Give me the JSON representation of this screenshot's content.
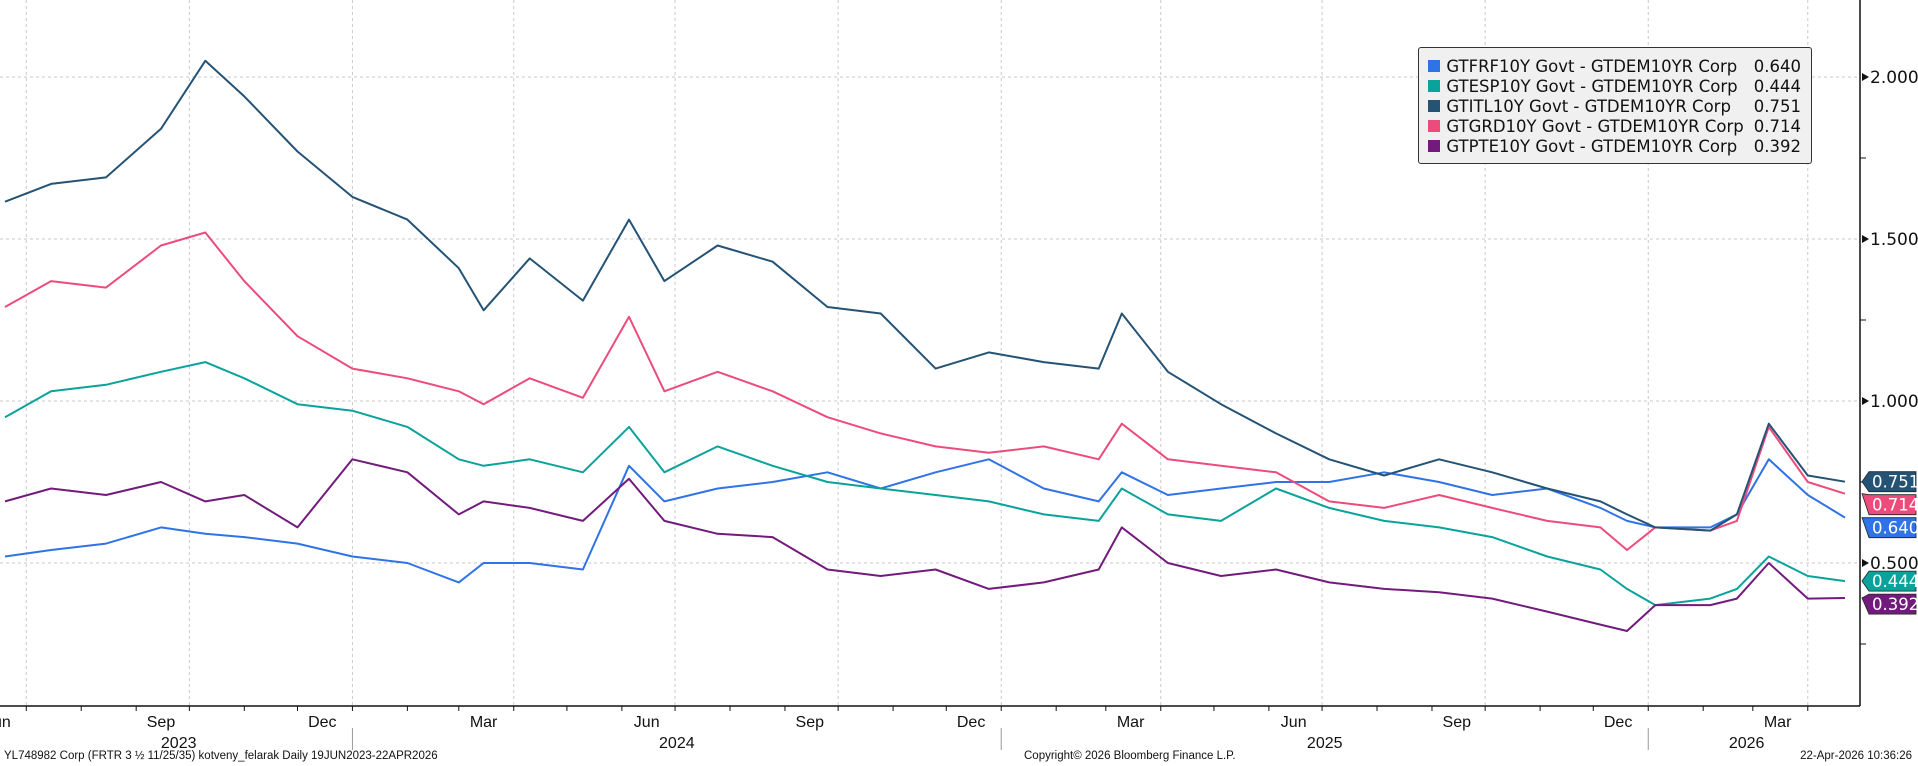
{
  "chart_data": {
    "type": "line",
    "title": "",
    "ylabel": "",
    "xlabel": "",
    "ylim": [
      0.1,
      2.25
    ],
    "yticks": [
      "2.000",
      "1.500",
      "1.000",
      "0.500"
    ],
    "ytick_values": [
      2.0,
      1.5,
      1.0,
      0.5
    ],
    "grid": true,
    "legend_position": "top-right",
    "x_month_labels": [
      {
        "date": "2023-06-15",
        "label": "Jun"
      },
      {
        "date": "2023-09-15",
        "label": "Sep"
      },
      {
        "date": "2023-12-15",
        "label": "Dec"
      },
      {
        "date": "2024-03-15",
        "label": "Mar"
      },
      {
        "date": "2024-06-15",
        "label": "Jun"
      },
      {
        "date": "2024-09-15",
        "label": "Sep"
      },
      {
        "date": "2024-12-15",
        "label": "Dec"
      },
      {
        "date": "2025-03-15",
        "label": "Mar"
      },
      {
        "date": "2025-06-15",
        "label": "Jun"
      },
      {
        "date": "2025-09-15",
        "label": "Sep"
      },
      {
        "date": "2025-12-15",
        "label": "Dec"
      },
      {
        "date": "2026-03-15",
        "label": "Mar"
      }
    ],
    "x_year_labels": [
      {
        "year": "2023",
        "from": "2023-06-19",
        "to": "2024-01-01"
      },
      {
        "year": "2024",
        "from": "2024-01-01",
        "to": "2025-01-01"
      },
      {
        "year": "2025",
        "from": "2025-01-01",
        "to": "2026-01-01"
      },
      {
        "year": "2026",
        "from": "2026-01-01",
        "to": "2026-04-22"
      }
    ],
    "x": [
      "2023-06-19",
      "2023-07-15",
      "2023-08-15",
      "2023-09-15",
      "2023-10-10",
      "2023-11-01",
      "2023-12-01",
      "2024-01-01",
      "2024-02-01",
      "2024-03-01",
      "2024-03-15",
      "2024-04-10",
      "2024-05-10",
      "2024-06-05",
      "2024-06-25",
      "2024-07-25",
      "2024-08-25",
      "2024-09-25",
      "2024-10-25",
      "2024-11-25",
      "2024-12-25",
      "2025-01-25",
      "2025-02-25",
      "2025-03-10",
      "2025-04-05",
      "2025-05-05",
      "2025-06-05",
      "2025-07-05",
      "2025-08-05",
      "2025-09-05",
      "2025-10-05",
      "2025-11-05",
      "2025-12-05",
      "2025-12-20",
      "2026-01-05",
      "2026-02-05",
      "2026-02-20",
      "2026-03-10",
      "2026-04-01",
      "2026-04-22"
    ],
    "series": [
      {
        "name": "GTFRF10Y Govt - GTDEM10YR Corp",
        "last": "0.640",
        "color": "#2f73e6",
        "values": [
          0.52,
          0.54,
          0.56,
          0.61,
          0.59,
          0.58,
          0.56,
          0.52,
          0.5,
          0.44,
          0.5,
          0.5,
          0.48,
          0.8,
          0.69,
          0.73,
          0.75,
          0.78,
          0.73,
          0.78,
          0.82,
          0.73,
          0.69,
          0.78,
          0.71,
          0.73,
          0.75,
          0.75,
          0.78,
          0.75,
          0.71,
          0.73,
          0.67,
          0.63,
          0.61,
          0.61,
          0.65,
          0.82,
          0.71,
          0.64
        ]
      },
      {
        "name": "GTESP10Y Govt - GTDEM10YR Corp",
        "last": "0.444",
        "color": "#0aa39c",
        "values": [
          0.95,
          1.03,
          1.05,
          1.09,
          1.12,
          1.07,
          0.99,
          0.97,
          0.92,
          0.82,
          0.8,
          0.82,
          0.78,
          0.92,
          0.78,
          0.86,
          0.8,
          0.75,
          0.73,
          0.71,
          0.69,
          0.65,
          0.63,
          0.73,
          0.65,
          0.63,
          0.73,
          0.67,
          0.63,
          0.61,
          0.58,
          0.52,
          0.48,
          0.42,
          0.37,
          0.39,
          0.42,
          0.52,
          0.46,
          0.444
        ]
      },
      {
        "name": "GTITL10Y Govt - GTDEM10YR Corp",
        "last": "0.751",
        "color": "#245376",
        "values": [
          1.615,
          1.67,
          1.69,
          1.84,
          2.05,
          1.94,
          1.77,
          1.63,
          1.56,
          1.41,
          1.28,
          1.44,
          1.31,
          1.56,
          1.37,
          1.48,
          1.43,
          1.29,
          1.27,
          1.1,
          1.15,
          1.12,
          1.1,
          1.27,
          1.09,
          0.99,
          0.9,
          0.82,
          0.77,
          0.82,
          0.78,
          0.73,
          0.69,
          0.65,
          0.61,
          0.6,
          0.65,
          0.93,
          0.77,
          0.751
        ]
      },
      {
        "name": "GTGRD10Y Govt - GTDEM10YR Corp",
        "last": "0.714",
        "color": "#ec4c7c",
        "values": [
          1.29,
          1.37,
          1.35,
          1.48,
          1.52,
          1.37,
          1.2,
          1.1,
          1.07,
          1.03,
          0.99,
          1.07,
          1.01,
          1.26,
          1.03,
          1.09,
          1.03,
          0.95,
          0.9,
          0.86,
          0.84,
          0.86,
          0.82,
          0.93,
          0.82,
          0.8,
          0.78,
          0.69,
          0.67,
          0.71,
          0.67,
          0.63,
          0.61,
          0.54,
          0.61,
          0.6,
          0.63,
          0.92,
          0.75,
          0.714
        ]
      },
      {
        "name": "GTPTE10Y Govt - GTDEM10YR Corp",
        "last": "0.392",
        "color": "#721b7c",
        "values": [
          0.69,
          0.73,
          0.71,
          0.75,
          0.69,
          0.71,
          0.61,
          0.82,
          0.78,
          0.65,
          0.69,
          0.67,
          0.63,
          0.76,
          0.63,
          0.59,
          0.58,
          0.48,
          0.46,
          0.48,
          0.42,
          0.44,
          0.48,
          0.61,
          0.5,
          0.46,
          0.48,
          0.44,
          0.42,
          0.41,
          0.39,
          0.35,
          0.31,
          0.29,
          0.37,
          0.37,
          0.39,
          0.5,
          0.39,
          0.392
        ]
      }
    ]
  },
  "footer": {
    "left": "YL748982 Corp (FRTR 3 ½ 11/25/35) kotveny_felarak Daily 19JUN2023-22APR2026",
    "center": "Copyright© 2026 Bloomberg Finance L.P.",
    "right": "22-Apr-2026 10:36:26"
  }
}
